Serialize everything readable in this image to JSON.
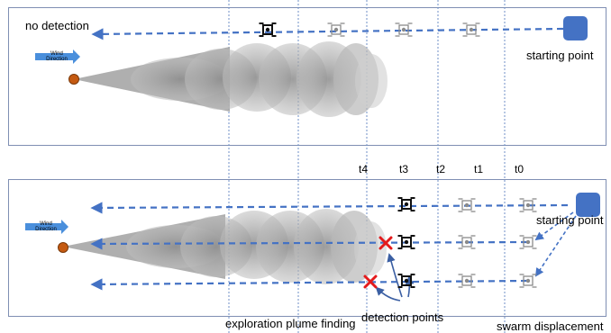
{
  "top_panel": {
    "status": "no detection",
    "start_label": "starting point",
    "wind": {
      "line1": "Wind",
      "line2": "Direction"
    }
  },
  "bottom_panel": {
    "time_labels": [
      "t4",
      "t3",
      "t2",
      "t1",
      "t0"
    ],
    "start_label": "starting point",
    "wind": {
      "line1": "Wind",
      "line2": "Direction"
    },
    "annotations": {
      "exploration": "exploration plume finding",
      "detection": "detection points",
      "swarm": "swarm displacement"
    }
  },
  "colors": {
    "panel_border": "#7f8fb3",
    "path": "#4472c4",
    "grid": "#6f8fc7",
    "start": "#4472c4",
    "source": "#c55a11",
    "detection_mark": "#e31a1c",
    "plume": "#9a9a9a",
    "wind_arrow": "#4a8fdc"
  },
  "icons": [
    "drone-icon",
    "detection-x-icon",
    "plume-source-icon",
    "wind-arrow-icon",
    "starting-point-icon"
  ]
}
